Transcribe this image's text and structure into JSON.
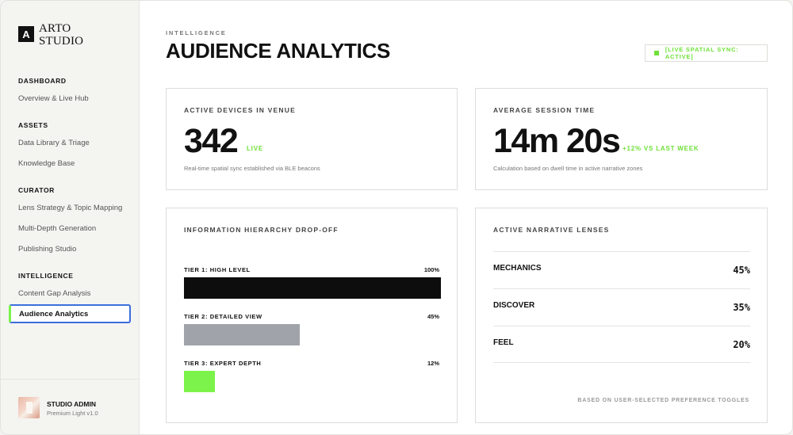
{
  "brand": {
    "mark": "A",
    "name_line1": "ARTO",
    "name_line2": "STUDIO"
  },
  "sidebar": {
    "sections": [
      {
        "title": "DASHBOARD",
        "items": [
          "Overview & Live Hub"
        ]
      },
      {
        "title": "ASSETS",
        "items": [
          "Data Library & Triage",
          "Knowledge Base"
        ]
      },
      {
        "title": "CURATOR",
        "items": [
          "Lens Strategy & Topic Mapping",
          "Multi-Depth Generation",
          "Publishing Studio"
        ]
      },
      {
        "title": "INTELLIGENCE",
        "items": [
          "Content Gap Analysis",
          "Audience Analytics"
        ]
      }
    ],
    "active_item": "Audience Analytics",
    "user": {
      "name": "STUDIO ADMIN",
      "role": "Premium Light v1.0"
    }
  },
  "header": {
    "eyebrow": "INTELLIGENCE",
    "title": "AUDIENCE ANALYTICS",
    "sync_status": "[LIVE SPATIAL SYNC: ACTIVE]"
  },
  "colors": {
    "accent_green": "#6fe03a",
    "focus_blue": "#3a6fdc",
    "tier1": "#0d0d0d",
    "tier2": "#a1a3aa",
    "tier3": "#7cf34a"
  },
  "cards": {
    "devices": {
      "label": "ACTIVE DEVICES IN VENUE",
      "value": "342",
      "tag": "LIVE",
      "note": "Real-time spatial sync established via BLE beacons"
    },
    "session": {
      "label": "AVERAGE SESSION TIME",
      "value": "14m 20s",
      "tag": "+12% VS LAST WEEK",
      "note": "Calculation based on dwell time in active narrative zones"
    },
    "dropoff": {
      "label": "INFORMATION HIERARCHY DROP-OFF",
      "tiers": [
        {
          "label": "TIER 1: HIGH LEVEL",
          "pct_text": "100%",
          "fraction": 1.0
        },
        {
          "label": "TIER 2: DETAILED VIEW",
          "pct_text": "45%",
          "fraction": 0.45
        },
        {
          "label": "TIER 3: EXPERT DEPTH",
          "pct_text": "12%",
          "fraction": 0.12
        }
      ]
    },
    "lenses": {
      "label": "ACTIVE NARRATIVE LENSES",
      "items": [
        {
          "name": "MECHANICS",
          "pct": "45%"
        },
        {
          "name": "DISCOVER",
          "pct": "35%"
        },
        {
          "name": "FEEL",
          "pct": "20%"
        }
      ],
      "footnote": "BASED ON USER-SELECTED PREFERENCE TOGGLES"
    }
  }
}
